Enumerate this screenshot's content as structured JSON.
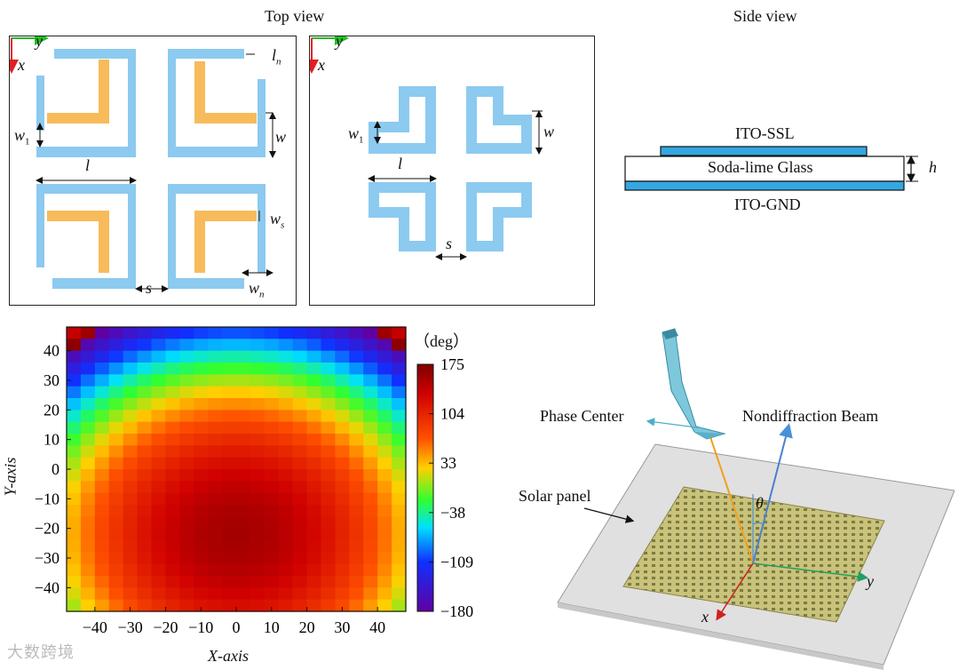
{
  "titles": {
    "top_view": "Top view",
    "side_view": "Side view"
  },
  "axes_labels": {
    "x": "x",
    "y": "y"
  },
  "dimensions": {
    "l_n": "l",
    "l_n_sub": "n",
    "w1": "w",
    "w1_sub": "1",
    "w": "w",
    "l": "l",
    "w_s": "w",
    "w_s_sub": "s",
    "s": "s",
    "w_n": "w",
    "w_n_sub": "n",
    "h": "h"
  },
  "side_view": {
    "top_layer": "ITO-SSL",
    "substrate": "Soda-lime Glass",
    "ground": "ITO-GND"
  },
  "colors": {
    "patch_blue": "#8ccaf0",
    "patch_orange": "#f7bb5c",
    "ito_blue": "#33a8e0"
  },
  "chart_data": {
    "type": "heatmap",
    "title": "",
    "xlabel": "X-axis",
    "ylabel": "Y-axis",
    "colorbar_unit": "（deg）",
    "x_ticks": [
      "−40",
      "−30",
      "−20",
      "−10",
      "0",
      "10",
      "20",
      "30",
      "40"
    ],
    "y_ticks": [
      "40",
      "30",
      "20",
      "10",
      "0",
      "−10",
      "−20",
      "−30",
      "−40"
    ],
    "xlim": [
      -48,
      48
    ],
    "ylim": [
      -48,
      48
    ],
    "grid_size": 24,
    "value_range": [
      -180,
      175
    ],
    "colorbar_ticks": [
      "175",
      "104",
      "33",
      "−38",
      "−109",
      "−180"
    ],
    "focus_center": [
      0,
      -22
    ],
    "colormap": "jet"
  },
  "scene": {
    "phase_center": "Phase Center",
    "beam": "Nondiffraction Beam",
    "panel": "Solar panel",
    "theta": "θ",
    "x": "x",
    "y": "y"
  },
  "watermark": "大数跨境"
}
